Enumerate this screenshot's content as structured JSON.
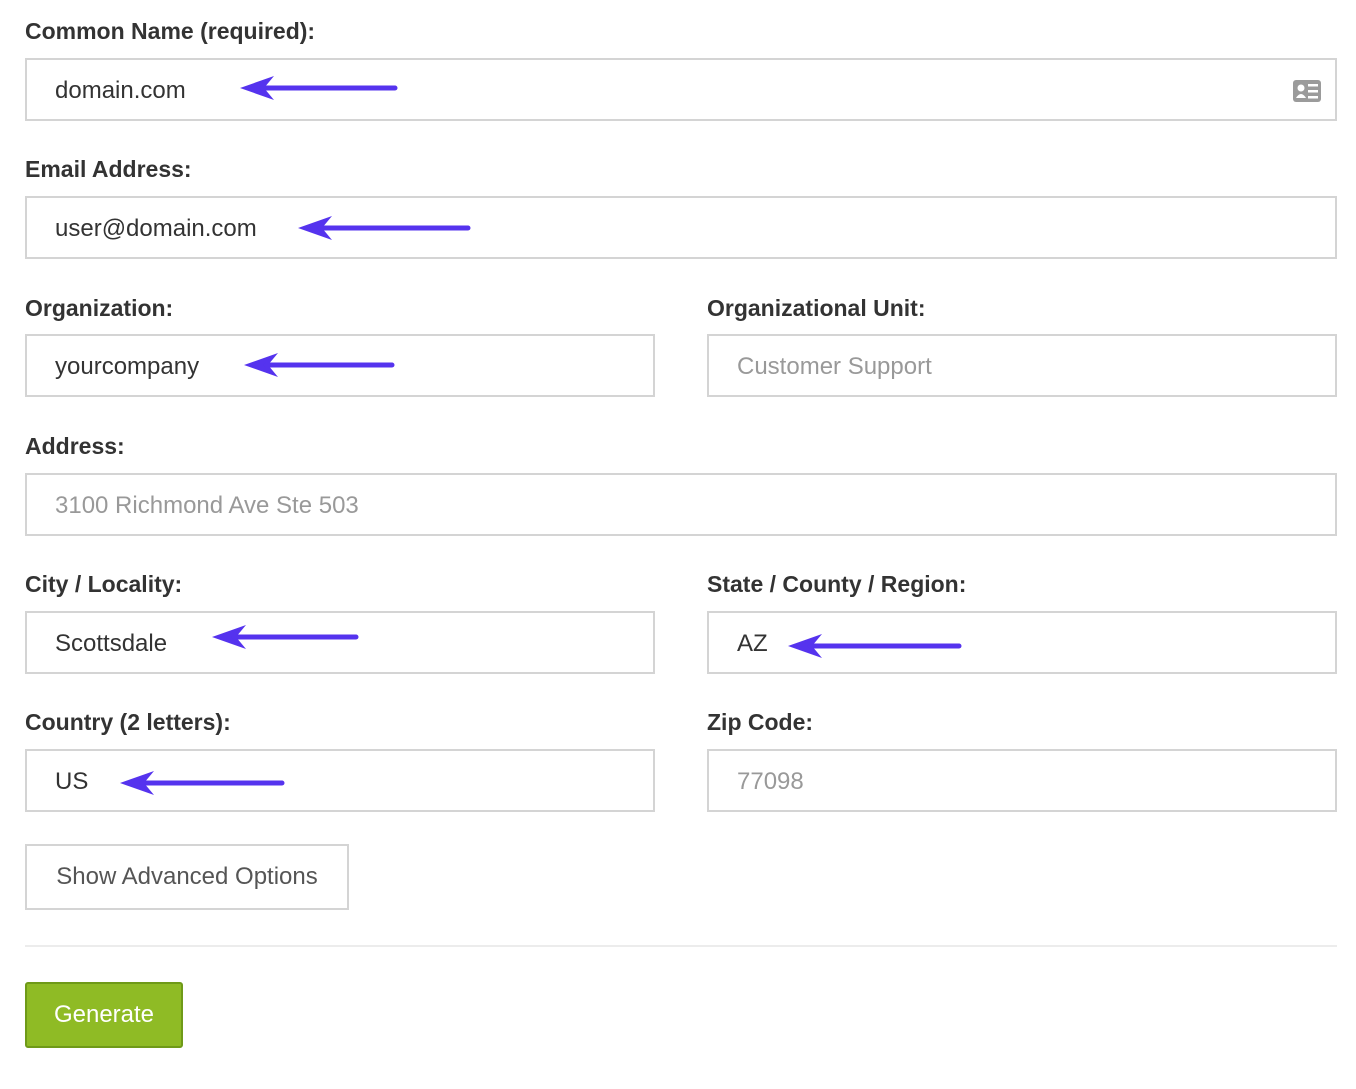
{
  "form": {
    "common_name": {
      "label": "Common Name (required):",
      "value": "domain.com",
      "icon": "contact-card-icon"
    },
    "email": {
      "label": "Email Address:",
      "value": "user@domain.com"
    },
    "organization": {
      "label": "Organization:",
      "value": "yourcompany"
    },
    "org_unit": {
      "label": "Organizational Unit:",
      "placeholder": "Customer Support"
    },
    "address": {
      "label": "Address:",
      "placeholder": "3100 Richmond Ave Ste 503"
    },
    "city": {
      "label": "City / Locality:",
      "value": "Scottsdale"
    },
    "state": {
      "label": "State / County / Region:",
      "value": "AZ"
    },
    "country": {
      "label": "Country (2 letters):",
      "value": "US"
    },
    "zip": {
      "label": "Zip Code:",
      "placeholder": "77098"
    }
  },
  "buttons": {
    "advanced": "Show Advanced Options",
    "generate": "Generate"
  },
  "colors": {
    "annotation_arrow": "#5533ee",
    "generate_button": "#8fbb25"
  }
}
